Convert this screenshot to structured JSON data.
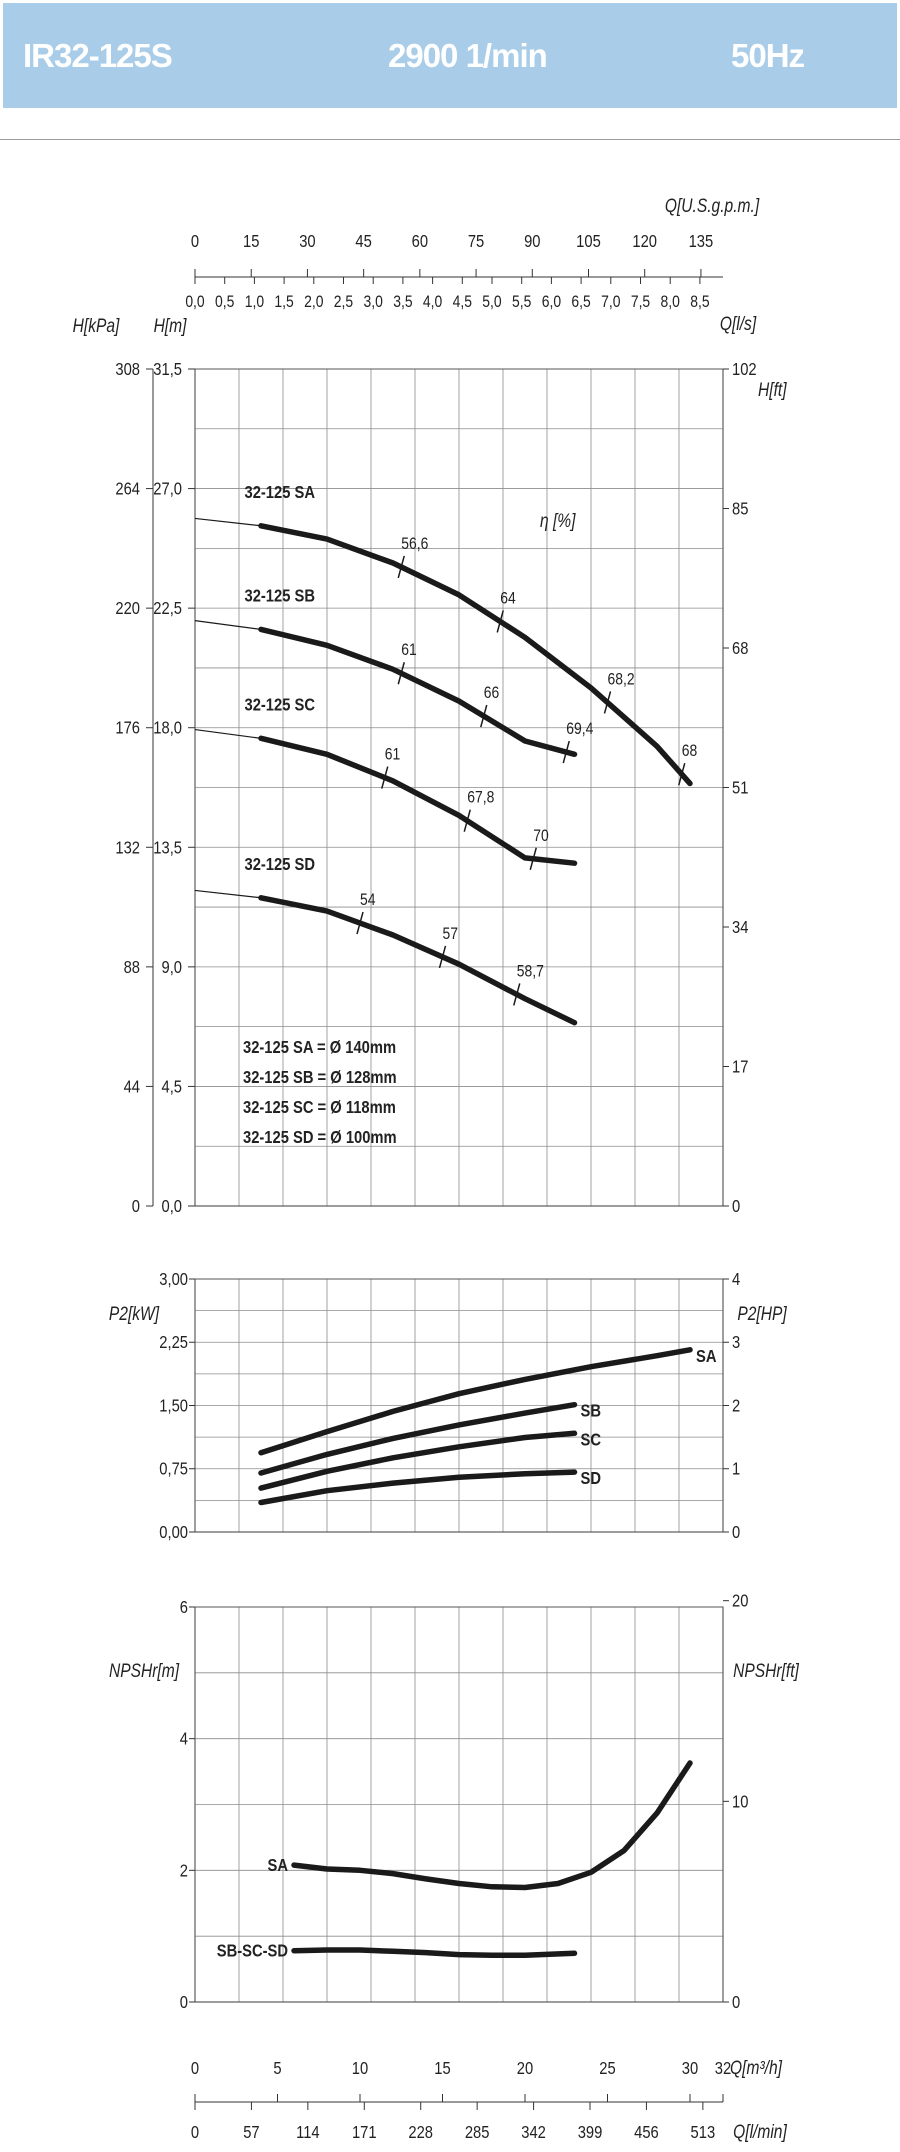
{
  "header": {
    "model": "IR32-125S",
    "speed": "2900 1/min",
    "frequency": "50Hz"
  },
  "colors": {
    "header_bg": "#a9cde8",
    "grid": "#8c8c8c",
    "curve": "#1a1a1a"
  },
  "axes_labels": {
    "q_usgpm": "Q[U.S.g.p.m.]",
    "q_ls": "Q[l/s]",
    "q_m3h": "Q[m³/h]",
    "q_lmin": "Q[l/min]",
    "h_kpa": "H[kPa]",
    "h_m": "H[m]",
    "h_ft": "H[ft]",
    "p2_kw": "P2[kW]",
    "p2_hp": "P2[HP]",
    "npshr_m": "NPSHr[m]",
    "npshr_ft": "NPSHr[ft]",
    "efficiency": "η [%]"
  },
  "diameters_legend": [
    "32-125 SA = Ø 140mm",
    "32-125 SB = Ø 128mm",
    "32-125 SC = Ø 118mm",
    "32-125 SD = Ø 100mm"
  ],
  "chart_data": [
    {
      "type": "line",
      "panel": "head",
      "x_unit": "Q[m³/h]",
      "xlim": [
        0,
        32
      ],
      "ylim": [
        0,
        31.5
      ],
      "y_unit": "H[m]",
      "grid": true,
      "ticks": {
        "q_usgpm": [
          "0",
          "15",
          "30",
          "45",
          "60",
          "75",
          "90",
          "105",
          "120",
          "135"
        ],
        "q_ls": [
          "0,0",
          "0,5",
          "1,0",
          "1,5",
          "2,0",
          "2,5",
          "3,0",
          "3,5",
          "4,0",
          "4,5",
          "5,0",
          "5,5",
          "6,0",
          "6,5",
          "7,0",
          "7,5",
          "8,0",
          "8,5"
        ],
        "h_kpa": [
          "0",
          "44",
          "88",
          "132",
          "176",
          "220",
          "264",
          "308"
        ],
        "h_m": [
          "0,0",
          "4,5",
          "9,0",
          "13,5",
          "18,0",
          "22,5",
          "27,0",
          "31,5"
        ],
        "h_ft": [
          "0",
          "17",
          "34",
          "51",
          "68",
          "85",
          "102"
        ]
      },
      "series": [
        {
          "name": "32-125 SA",
          "thin_x": [
            0,
            4
          ],
          "x": [
            4,
            8,
            12,
            16,
            20,
            24,
            28,
            30
          ],
          "y": [
            25.6,
            25.1,
            24.2,
            23.0,
            21.4,
            19.5,
            17.3,
            15.9
          ],
          "efficiency": [
            {
              "x": 12.5,
              "label": "56,6"
            },
            {
              "x": 18.5,
              "label": "64"
            },
            {
              "x": 25.0,
              "label": "68,2"
            },
            {
              "x": 29.5,
              "label": "68"
            }
          ]
        },
        {
          "name": "32-125 SB",
          "thin_x": [
            0,
            4
          ],
          "x": [
            4,
            8,
            12,
            16,
            20,
            23
          ],
          "y": [
            21.7,
            21.1,
            20.2,
            19.0,
            17.5,
            17.0
          ],
          "efficiency": [
            {
              "x": 12.5,
              "label": "61"
            },
            {
              "x": 17.5,
              "label": "66"
            },
            {
              "x": 22.5,
              "label": "69,4"
            }
          ]
        },
        {
          "name": "32-125 SC",
          "thin_x": [
            0,
            4
          ],
          "x": [
            4,
            8,
            12,
            16,
            20,
            23
          ],
          "y": [
            17.6,
            17.0,
            16.0,
            14.7,
            13.1,
            12.9
          ],
          "efficiency": [
            {
              "x": 11.5,
              "label": "61"
            },
            {
              "x": 16.5,
              "label": "67,8"
            },
            {
              "x": 20.5,
              "label": "70"
            }
          ]
        },
        {
          "name": "32-125 SD",
          "thin_x": [
            0,
            4
          ],
          "x": [
            4,
            8,
            12,
            16,
            20,
            23
          ],
          "y": [
            11.6,
            11.1,
            10.2,
            9.1,
            7.8,
            6.9
          ],
          "efficiency": [
            {
              "x": 10.0,
              "label": "54"
            },
            {
              "x": 15.0,
              "label": "57"
            },
            {
              "x": 19.5,
              "label": "58,7"
            }
          ]
        }
      ]
    },
    {
      "type": "line",
      "panel": "power",
      "x_unit": "Q[m³/h]",
      "xlim": [
        0,
        32
      ],
      "ylim": [
        0,
        3
      ],
      "y_unit": "P2[kW]",
      "grid": true,
      "ticks": {
        "p2_kw": [
          "0,00",
          "0,75",
          "1,50",
          "2,25",
          "3,00"
        ],
        "p2_hp": [
          "0",
          "1",
          "2",
          "3",
          "4"
        ]
      },
      "series": [
        {
          "name": "SA",
          "x": [
            4,
            8,
            12,
            16,
            20,
            24,
            28,
            30
          ],
          "y": [
            0.94,
            1.19,
            1.43,
            1.64,
            1.81,
            1.96,
            2.09,
            2.16
          ]
        },
        {
          "name": "SB",
          "x": [
            4,
            8,
            12,
            16,
            20,
            23
          ],
          "y": [
            0.7,
            0.92,
            1.11,
            1.27,
            1.41,
            1.51
          ]
        },
        {
          "name": "SC",
          "x": [
            4,
            8,
            12,
            16,
            20,
            23
          ],
          "y": [
            0.52,
            0.72,
            0.88,
            1.01,
            1.12,
            1.17
          ]
        },
        {
          "name": "SD",
          "x": [
            4,
            8,
            12,
            16,
            20,
            23
          ],
          "y": [
            0.35,
            0.49,
            0.58,
            0.65,
            0.69,
            0.71
          ]
        }
      ]
    },
    {
      "type": "line",
      "panel": "npsh",
      "x_unit": "Q[m³/h]",
      "xlim": [
        0,
        32
      ],
      "ylim": [
        0,
        6
      ],
      "y_unit": "NPSHr[m]",
      "grid": true,
      "ticks": {
        "npshr_m": [
          "0",
          "2",
          "4",
          "6"
        ],
        "npshr_ft": [
          "0",
          "10",
          "20"
        ],
        "q_m3h": [
          "0",
          "5",
          "10",
          "15",
          "20",
          "25",
          "30",
          "32"
        ],
        "q_lmin": [
          "0",
          "57",
          "114",
          "171",
          "228",
          "285",
          "342",
          "399",
          "456",
          "513"
        ]
      },
      "series": [
        {
          "name": "SA",
          "x": [
            6,
            8,
            10,
            12,
            14,
            16,
            18,
            20,
            22,
            24,
            26,
            28,
            30
          ],
          "y": [
            2.08,
            2.02,
            2.0,
            1.95,
            1.87,
            1.8,
            1.75,
            1.74,
            1.8,
            1.97,
            2.3,
            2.87,
            3.63
          ]
        },
        {
          "name": "SB-SC-SD",
          "x": [
            6,
            8,
            10,
            12,
            14,
            16,
            18,
            20,
            23
          ],
          "y": [
            0.78,
            0.79,
            0.79,
            0.77,
            0.75,
            0.72,
            0.71,
            0.71,
            0.74
          ]
        }
      ]
    }
  ]
}
